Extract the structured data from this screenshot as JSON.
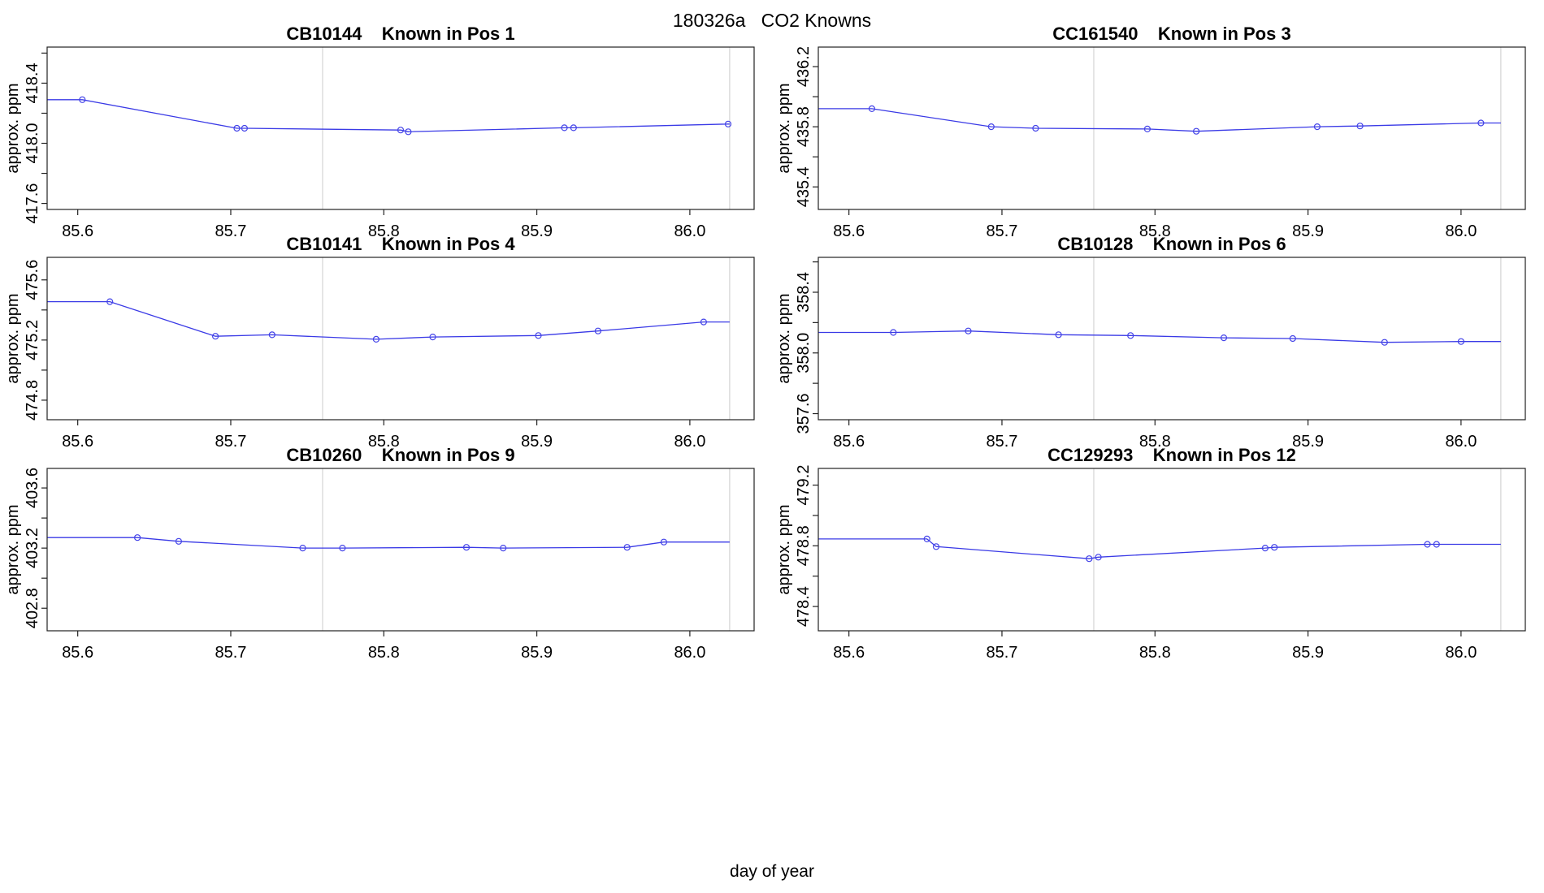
{
  "figure": {
    "title": "180326a   CO2 Knowns",
    "xlabel": "day of year",
    "ylabel": "approx. ppm"
  },
  "colors": {
    "series_line": "#3a3ae6",
    "marker": "#4343e8",
    "reference_line": "#d4d4d4",
    "axis": "#222222",
    "text": "#000000",
    "background": "#ffffff"
  },
  "axes_shared": {
    "xlim": [
      85.58,
      86.042
    ],
    "x_ticks": [
      {
        "v": 85.6,
        "label": "85.6"
      },
      {
        "v": 85.7,
        "label": "85.7"
      },
      {
        "v": 85.8,
        "label": "85.8"
      },
      {
        "v": 85.9,
        "label": "85.9"
      },
      {
        "v": 86.0,
        "label": "86.0"
      }
    ],
    "ref_lines_x": [
      85.76,
      86.026
    ],
    "grid": "off",
    "legend": "none"
  },
  "chart_data": [
    {
      "type": "line",
      "title": "CB10144    Known in Pos 1",
      "sample_id": "CB10144",
      "position": "Known in Pos 1",
      "ylabel": "approx. ppm",
      "ylim": [
        417.56,
        418.64
      ],
      "y_ticks": [
        {
          "v": 417.6,
          "label": "417.6"
        },
        {
          "v": 417.8,
          "label": ""
        },
        {
          "v": 418.0,
          "label": "418.0"
        },
        {
          "v": 418.2,
          "label": ""
        },
        {
          "v": 418.4,
          "label": "418.4"
        },
        {
          "v": 418.6,
          "label": ""
        }
      ],
      "x": [
        85.603,
        85.704,
        85.709,
        85.811,
        85.816,
        85.918,
        85.924,
        86.025
      ],
      "y": [
        418.29,
        418.1,
        418.1,
        418.088,
        418.077,
        418.103,
        418.103,
        418.128
      ]
    },
    {
      "type": "line",
      "title": "CC161540    Known in Pos 3",
      "sample_id": "CC161540",
      "position": "Known in Pos 3",
      "ylabel": "approx. ppm",
      "ylim": [
        435.25,
        436.33
      ],
      "y_ticks": [
        {
          "v": 435.4,
          "label": "435.4"
        },
        {
          "v": 435.6,
          "label": ""
        },
        {
          "v": 435.8,
          "label": "435.8"
        },
        {
          "v": 436.0,
          "label": ""
        },
        {
          "v": 436.2,
          "label": "436.2"
        }
      ],
      "x": [
        85.615,
        85.693,
        85.722,
        85.795,
        85.827,
        85.906,
        85.934,
        86.013
      ],
      "y": [
        435.92,
        435.8,
        435.79,
        435.785,
        435.77,
        435.8,
        435.805,
        435.825
      ]
    },
    {
      "type": "line",
      "title": "CB10141    Known in Pos 4",
      "sample_id": "CB10141",
      "position": "Known in Pos 4",
      "ylabel": "approx. ppm",
      "ylim": [
        474.67,
        475.75
      ],
      "y_ticks": [
        {
          "v": 474.8,
          "label": "474.8"
        },
        {
          "v": 475.0,
          "label": ""
        },
        {
          "v": 475.2,
          "label": "475.2"
        },
        {
          "v": 475.4,
          "label": ""
        },
        {
          "v": 475.6,
          "label": "475.6"
        }
      ],
      "x": [
        85.621,
        85.69,
        85.727,
        85.795,
        85.832,
        85.901,
        85.94,
        86.009
      ],
      "y": [
        475.455,
        475.225,
        475.235,
        475.205,
        475.22,
        475.23,
        475.26,
        475.32
      ]
    },
    {
      "type": "line",
      "title": "CB10128    Known in Pos 6",
      "sample_id": "CB10128",
      "position": "Known in Pos 6",
      "ylabel": "approx. ppm",
      "ylim": [
        357.56,
        358.63
      ],
      "y_ticks": [
        {
          "v": 357.6,
          "label": "357.6"
        },
        {
          "v": 357.8,
          "label": ""
        },
        {
          "v": 358.0,
          "label": "358.0"
        },
        {
          "v": 358.2,
          "label": ""
        },
        {
          "v": 358.4,
          "label": "358.4"
        },
        {
          "v": 358.6,
          "label": ""
        }
      ],
      "x": [
        85.629,
        85.678,
        85.737,
        85.784,
        85.845,
        85.89,
        85.95,
        86.0
      ],
      "y": [
        358.135,
        358.145,
        358.12,
        358.115,
        358.1,
        358.095,
        358.07,
        358.075
      ]
    },
    {
      "type": "line",
      "title": "CB10260    Known in Pos 9",
      "sample_id": "CB10260",
      "position": "Known in Pos 9",
      "ylabel": "approx. ppm",
      "ylim": [
        402.65,
        403.73
      ],
      "y_ticks": [
        {
          "v": 402.8,
          "label": "402.8"
        },
        {
          "v": 403.0,
          "label": ""
        },
        {
          "v": 403.2,
          "label": "403.2"
        },
        {
          "v": 403.4,
          "label": ""
        },
        {
          "v": 403.6,
          "label": "403.6"
        }
      ],
      "x": [
        85.639,
        85.666,
        85.747,
        85.773,
        85.854,
        85.878,
        85.959,
        85.983
      ],
      "y": [
        403.27,
        403.245,
        403.2,
        403.2,
        403.205,
        403.2,
        403.205,
        403.24
      ]
    },
    {
      "type": "line",
      "title": "CC129293    Known in Pos 12",
      "sample_id": "CC129293",
      "position": "Known in Pos 12",
      "ylabel": "approx. ppm",
      "ylim": [
        478.24,
        479.31
      ],
      "y_ticks": [
        {
          "v": 478.4,
          "label": "478.4"
        },
        {
          "v": 478.6,
          "label": ""
        },
        {
          "v": 478.8,
          "label": "478.8"
        },
        {
          "v": 479.0,
          "label": ""
        },
        {
          "v": 479.2,
          "label": "479.2"
        }
      ],
      "x": [
        85.651,
        85.657,
        85.757,
        85.763,
        85.872,
        85.878,
        85.978,
        85.984
      ],
      "y": [
        478.845,
        478.795,
        478.715,
        478.725,
        478.785,
        478.79,
        478.81,
        478.81
      ]
    }
  ]
}
